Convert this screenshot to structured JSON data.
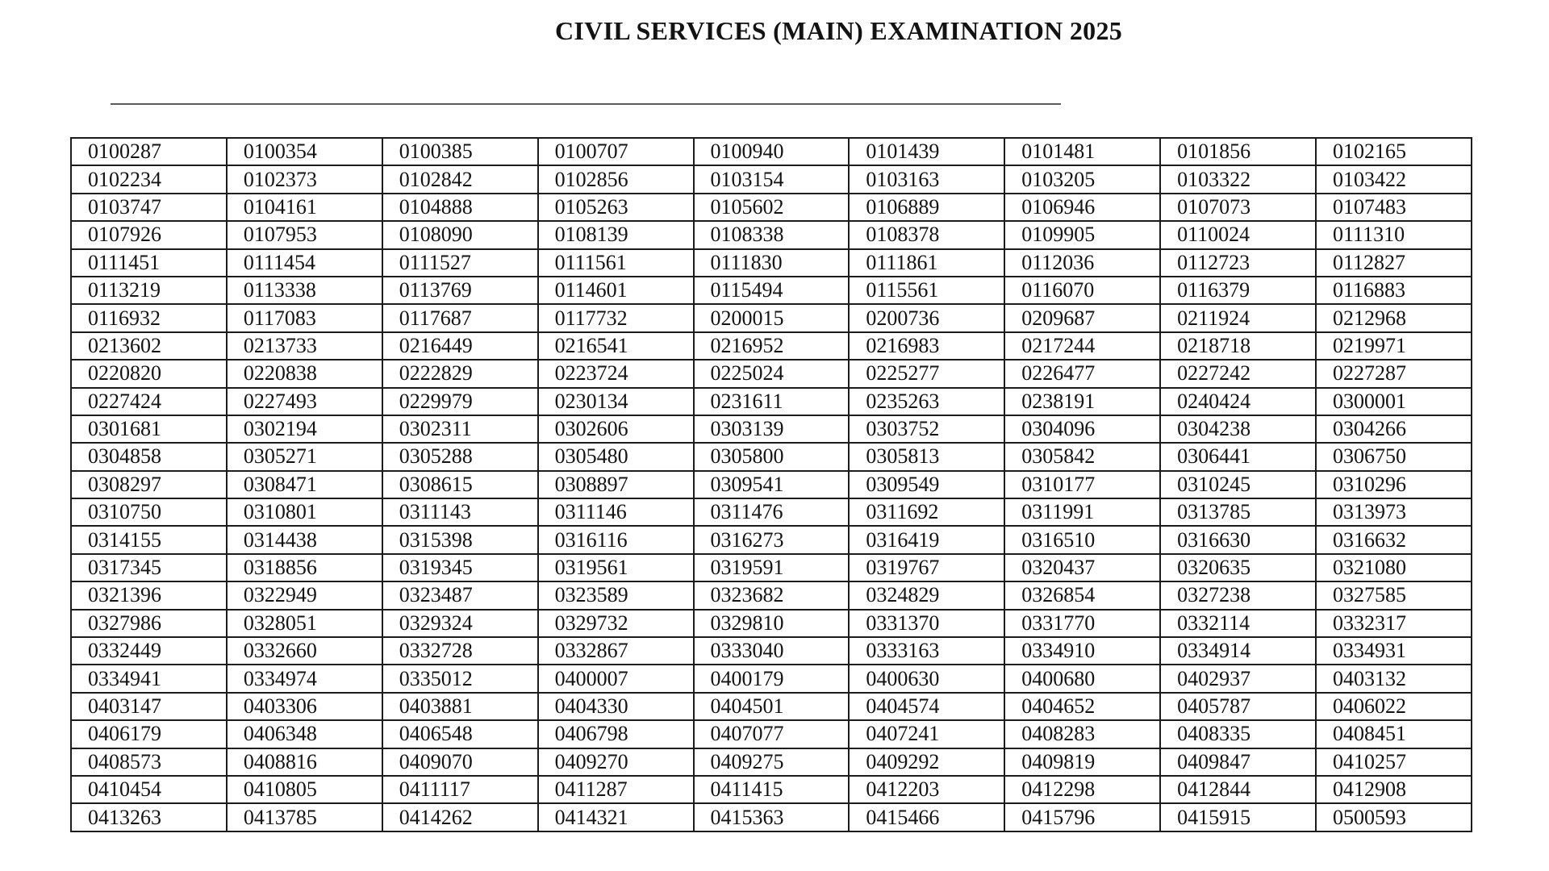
{
  "page": {
    "title": "CIVIL SERVICES (MAIN) EXAMINATION 2025"
  },
  "table": {
    "columns": 9,
    "rows": [
      [
        "0100287",
        "0100354",
        "0100385",
        "0100707",
        "0100940",
        "0101439",
        "0101481",
        "0101856",
        "0102165"
      ],
      [
        "0102234",
        "0102373",
        "0102842",
        "0102856",
        "0103154",
        "0103163",
        "0103205",
        "0103322",
        "0103422"
      ],
      [
        "0103747",
        "0104161",
        "0104888",
        "0105263",
        "0105602",
        "0106889",
        "0106946",
        "0107073",
        "0107483"
      ],
      [
        "0107926",
        "0107953",
        "0108090",
        "0108139",
        "0108338",
        "0108378",
        "0109905",
        "0110024",
        "0111310"
      ],
      [
        "0111451",
        "0111454",
        "0111527",
        "0111561",
        "0111830",
        "0111861",
        "0112036",
        "0112723",
        "0112827"
      ],
      [
        "0113219",
        "0113338",
        "0113769",
        "0114601",
        "0115494",
        "0115561",
        "0116070",
        "0116379",
        "0116883"
      ],
      [
        "0116932",
        "0117083",
        "0117687",
        "0117732",
        "0200015",
        "0200736",
        "0209687",
        "0211924",
        "0212968"
      ],
      [
        "0213602",
        "0213733",
        "0216449",
        "0216541",
        "0216952",
        "0216983",
        "0217244",
        "0218718",
        "0219971"
      ],
      [
        "0220820",
        "0220838",
        "0222829",
        "0223724",
        "0225024",
        "0225277",
        "0226477",
        "0227242",
        "0227287"
      ],
      [
        "0227424",
        "0227493",
        "0229979",
        "0230134",
        "0231611",
        "0235263",
        "0238191",
        "0240424",
        "0300001"
      ],
      [
        "0301681",
        "0302194",
        "0302311",
        "0302606",
        "0303139",
        "0303752",
        "0304096",
        "0304238",
        "0304266"
      ],
      [
        "0304858",
        "0305271",
        "0305288",
        "0305480",
        "0305800",
        "0305813",
        "0305842",
        "0306441",
        "0306750"
      ],
      [
        "0308297",
        "0308471",
        "0308615",
        "0308897",
        "0309541",
        "0309549",
        "0310177",
        "0310245",
        "0310296"
      ],
      [
        "0310750",
        "0310801",
        "0311143",
        "0311146",
        "0311476",
        "0311692",
        "0311991",
        "0313785",
        "0313973"
      ],
      [
        "0314155",
        "0314438",
        "0315398",
        "0316116",
        "0316273",
        "0316419",
        "0316510",
        "0316630",
        "0316632"
      ],
      [
        "0317345",
        "0318856",
        "0319345",
        "0319561",
        "0319591",
        "0319767",
        "0320437",
        "0320635",
        "0321080"
      ],
      [
        "0321396",
        "0322949",
        "0323487",
        "0323589",
        "0323682",
        "0324829",
        "0326854",
        "0327238",
        "0327585"
      ],
      [
        "0327986",
        "0328051",
        "0329324",
        "0329732",
        "0329810",
        "0331370",
        "0331770",
        "0332114",
        "0332317"
      ],
      [
        "0332449",
        "0332660",
        "0332728",
        "0332867",
        "0333040",
        "0333163",
        "0334910",
        "0334914",
        "0334931"
      ],
      [
        "0334941",
        "0334974",
        "0335012",
        "0400007",
        "0400179",
        "0400630",
        "0400680",
        "0402937",
        "0403132"
      ],
      [
        "0403147",
        "0403306",
        "0403881",
        "0404330",
        "0404501",
        "0404574",
        "0404652",
        "0405787",
        "0406022"
      ],
      [
        "0406179",
        "0406348",
        "0406548",
        "0406798",
        "0407077",
        "0407241",
        "0408283",
        "0408335",
        "0408451"
      ],
      [
        "0408573",
        "0408816",
        "0409070",
        "0409270",
        "0409275",
        "0409292",
        "0409819",
        "0409847",
        "0410257"
      ],
      [
        "0410454",
        "0410805",
        "0411117",
        "0411287",
        "0411415",
        "0412203",
        "0412298",
        "0412844",
        "0412908"
      ],
      [
        "0413263",
        "0413785",
        "0414262",
        "0414321",
        "0415363",
        "0415466",
        "0415796",
        "0415915",
        "0500593"
      ]
    ]
  }
}
